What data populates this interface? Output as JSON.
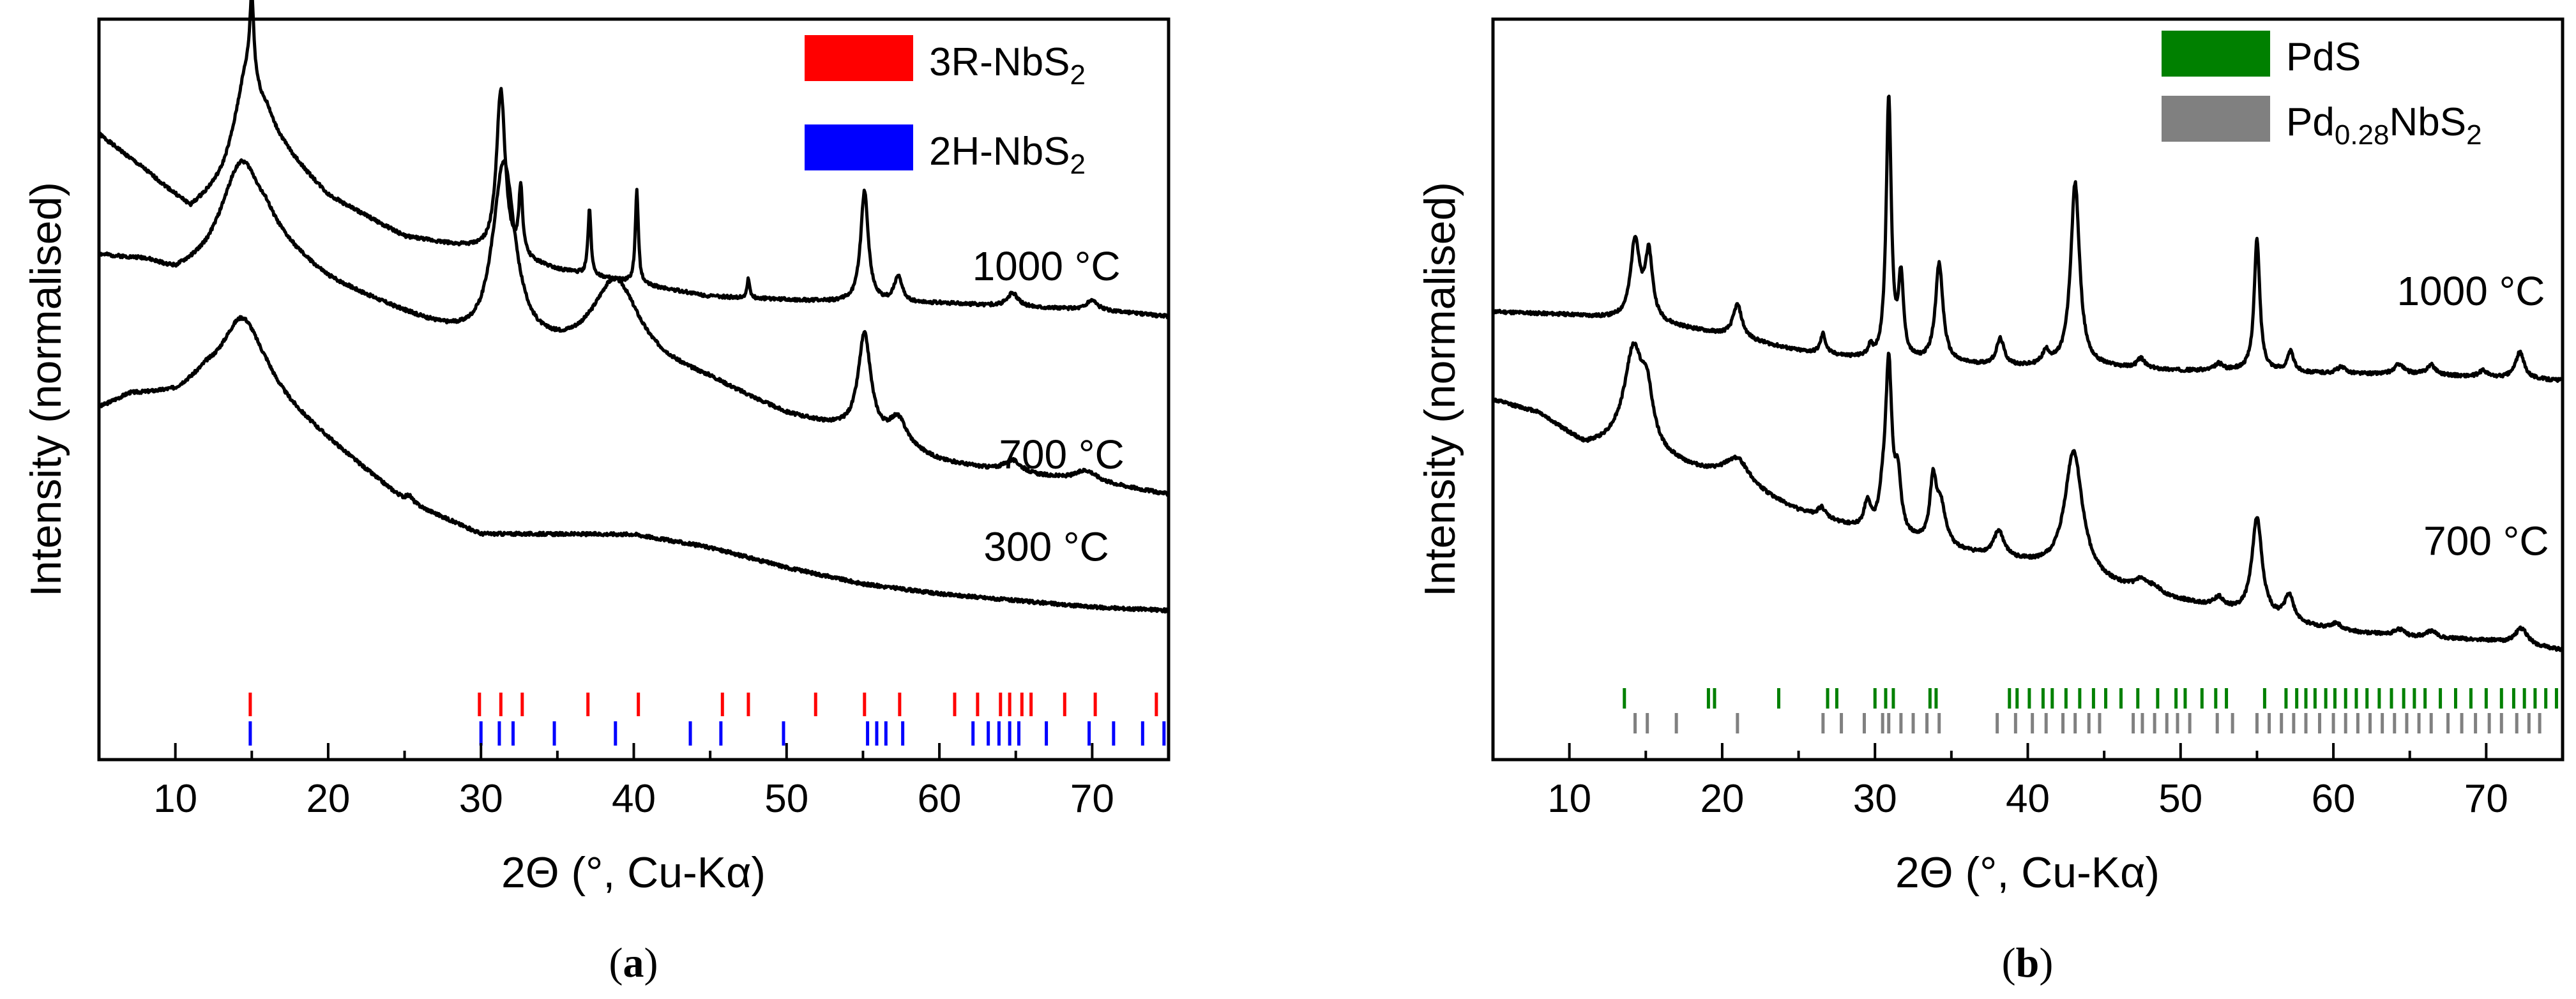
{
  "chart_data": [
    {
      "panel": "a",
      "type": "line",
      "caption_open": "(",
      "caption_letter": "a",
      "caption_close": ")",
      "title": "",
      "xlabel": "2Θ (°, Cu-Kα)",
      "ylabel": "Intensity (normalised)",
      "xlim": [
        5,
        75
      ],
      "ylim": [
        0,
        100
      ],
      "xticks": [
        10,
        20,
        30,
        40,
        50,
        60,
        70
      ],
      "yticks_shown": false,
      "legend": {
        "placement": "top-right",
        "entries": [
          {
            "name": "3R-NbS",
            "sub": "2",
            "color": "#ff0000"
          },
          {
            "name": "2H-NbS",
            "sub": "2",
            "color": "#0000ff"
          }
        ]
      },
      "series": [
        {
          "name": "1000 °C",
          "label": "1000 °C",
          "label_at": [
            67,
            60.5
          ],
          "base": [
            [
              5,
              82.5
            ],
            [
              8,
              77
            ],
            [
              11,
              71
            ],
            [
              13,
              74
            ],
            [
              16,
              82
            ],
            [
              20,
              73
            ],
            [
              25,
              67
            ],
            [
              30,
              65
            ],
            [
              35,
              62
            ],
            [
              40,
              60
            ],
            [
              45,
              58
            ],
            [
              50,
              57.5
            ],
            [
              55,
              57
            ],
            [
              60,
              57
            ],
            [
              65,
              56.5
            ],
            [
              70,
              56
            ],
            [
              75,
              55
            ]
          ],
          "peaks": [
            [
              14.7,
              14,
              1.0
            ],
            [
              15.0,
              12,
              0.15
            ],
            [
              31.3,
              25,
              0.35
            ],
            [
              32.6,
              10,
              0.15
            ],
            [
              37.1,
              10,
              0.12
            ],
            [
              40.2,
              14,
              0.12
            ],
            [
              47.5,
              3,
              0.1
            ],
            [
              55.1,
              17,
              0.3
            ],
            [
              57.3,
              4,
              0.3
            ],
            [
              64.8,
              2,
              0.4
            ],
            [
              70.0,
              1.5,
              0.4
            ]
          ]
        },
        {
          "name": "700 °C",
          "label": "700 °C",
          "label_at": [
            68,
            32
          ],
          "base": [
            [
              5,
              64
            ],
            [
              8,
              63
            ],
            [
              10,
              61
            ],
            [
              12,
              62
            ],
            [
              16,
              66
            ],
            [
              20,
              60
            ],
            [
              25,
              55
            ],
            [
              30,
              50
            ],
            [
              35,
              49
            ],
            [
              40,
              48
            ],
            [
              45,
              45
            ],
            [
              50,
              40
            ],
            [
              55,
              37
            ],
            [
              60,
              33
            ],
            [
              65,
              31
            ],
            [
              70,
              30
            ],
            [
              75,
              28
            ]
          ],
          "peaks": [
            [
              14.3,
              14,
              1.6
            ],
            [
              31.5,
              28,
              0.9
            ],
            [
              38.8,
              12,
              1.8
            ],
            [
              55.1,
              15,
              0.5
            ],
            [
              57.3,
              4,
              0.7
            ],
            [
              64.8,
              2,
              0.7
            ],
            [
              69.6,
              1.5,
              0.8
            ]
          ]
        },
        {
          "name": "300 °C",
          "label": "300 °C",
          "label_at": [
            67,
            18
          ],
          "base": [
            [
              5,
              41
            ],
            [
              7,
              43
            ],
            [
              10,
              43
            ],
            [
              12,
              45
            ],
            [
              16,
              43
            ],
            [
              20,
              36
            ],
            [
              25,
              27
            ],
            [
              30,
              22
            ],
            [
              35,
              22
            ],
            [
              40,
              22
            ],
            [
              45,
              20
            ],
            [
              50,
              17
            ],
            [
              55,
              14.5
            ],
            [
              60,
              13
            ],
            [
              65,
              12
            ],
            [
              70,
              11
            ],
            [
              75,
              10.5
            ]
          ],
          "peaks": [
            [
              14.4,
              11,
              1.6
            ],
            [
              25.3,
              1,
              0.3
            ]
          ]
        }
      ],
      "reference_ticks": [
        {
          "name": "3R-NbS2",
          "color": "#ff0000",
          "positions": [
            14.9,
            29.9,
            31.3,
            32.7,
            37.0,
            40.3,
            45.8,
            47.5,
            51.9,
            55.1,
            57.4,
            61.0,
            62.5,
            64.0,
            64.6,
            65.4,
            66.0,
            68.2,
            70.2,
            74.2
          ]
        },
        {
          "name": "2H-NbS2",
          "color": "#0000ff",
          "positions": [
            14.9,
            30.0,
            31.2,
            32.1,
            34.8,
            38.8,
            43.7,
            45.7,
            49.8,
            55.3,
            55.9,
            56.5,
            57.6,
            62.2,
            63.2,
            63.9,
            64.6,
            65.2,
            67.0,
            69.8,
            71.4,
            73.3,
            74.7
          ]
        }
      ]
    },
    {
      "panel": "b",
      "type": "line",
      "caption_open": "(",
      "caption_letter": "b",
      "caption_close": ")",
      "title": "",
      "xlabel": "2Θ (°, Cu-Kα)",
      "ylabel": "Intensity (normalised)",
      "xlim": [
        5,
        75
      ],
      "ylim": [
        0,
        100
      ],
      "xticks": [
        10,
        20,
        30,
        40,
        50,
        60,
        70
      ],
      "yticks_shown": false,
      "legend": {
        "placement": "top-right",
        "entries": [
          {
            "name": "PdS",
            "sub": "",
            "color": "#008000"
          },
          {
            "name": "Pd",
            "sub": "0.28",
            "name2": "NbS",
            "sub2": "2",
            "color": "#808080"
          }
        ]
      },
      "series": [
        {
          "name": "1000 °C",
          "label": "1000 °C",
          "label_at": [
            69,
            56.5
          ],
          "base": [
            [
              5,
              55.5
            ],
            [
              10,
              55
            ],
            [
              15,
              54
            ],
            [
              20,
              52
            ],
            [
              25,
              49.5
            ],
            [
              30,
              48
            ],
            [
              35,
              47.5
            ],
            [
              40,
              47
            ],
            [
              45,
              47
            ],
            [
              50,
              46.5
            ],
            [
              55,
              46.5
            ],
            [
              60,
              46
            ],
            [
              65,
              46
            ],
            [
              70,
              45.5
            ],
            [
              75,
              45
            ]
          ],
          "peaks": [
            [
              14.3,
              12,
              0.35
            ],
            [
              15.2,
              10,
              0.3
            ],
            [
              21.0,
              5,
              0.35
            ],
            [
              26.6,
              3,
              0.2
            ],
            [
              29.7,
              1.5,
              0.2
            ],
            [
              30.9,
              40,
              0.2
            ],
            [
              31.7,
              12,
              0.2
            ],
            [
              34.2,
              15,
              0.3
            ],
            [
              38.2,
              4,
              0.3
            ],
            [
              41.2,
              2,
              0.3
            ],
            [
              43.1,
              28,
              0.35
            ],
            [
              47.4,
              1.5,
              0.3
            ],
            [
              52.5,
              1,
              0.3
            ],
            [
              55.0,
              20,
              0.22
            ],
            [
              57.2,
              3,
              0.25
            ],
            [
              60.5,
              1,
              0.4
            ],
            [
              64.3,
              1.5,
              0.35
            ],
            [
              66.4,
              1.5,
              0.35
            ],
            [
              69.8,
              1,
              0.3
            ],
            [
              72.2,
              4,
              0.35
            ]
          ]
        },
        {
          "name": "700 °C",
          "label": "700 °C",
          "label_at": [
            70,
            18.5
          ],
          "base": [
            [
              5,
              42
            ],
            [
              8,
              40
            ],
            [
              11,
              35
            ],
            [
              13,
              35
            ],
            [
              20,
              30
            ],
            [
              25,
              25
            ],
            [
              30,
              21.5
            ],
            [
              35,
              19
            ],
            [
              40,
              17
            ],
            [
              45,
              14
            ],
            [
              50,
              11.5
            ],
            [
              55,
              9
            ],
            [
              60,
              7
            ],
            [
              65,
              6
            ],
            [
              70,
              5.5
            ],
            [
              75,
              4
            ]
          ],
          "peaks": [
            [
              14.2,
              15,
              0.75
            ],
            [
              15.1,
              7,
              0.45
            ],
            [
              21.0,
              4,
              1.0
            ],
            [
              26.5,
              1.5,
              0.3
            ],
            [
              29.5,
              4,
              0.25
            ],
            [
              30.5,
              4,
              0.3
            ],
            [
              30.9,
              25,
              0.25
            ],
            [
              31.5,
              8,
              0.25
            ],
            [
              33.8,
              9,
              0.25
            ],
            [
              34.3,
              6,
              0.4
            ],
            [
              38.1,
              4,
              0.4
            ],
            [
              43.0,
              19,
              0.7
            ],
            [
              47.4,
              1.5,
              0.5
            ],
            [
              48.3,
              1,
              0.4
            ],
            [
              52.5,
              1.5,
              0.4
            ],
            [
              55.0,
              15,
              0.4
            ],
            [
              57.1,
              4,
              0.35
            ],
            [
              60.2,
              1,
              0.4
            ],
            [
              64.3,
              1,
              0.4
            ],
            [
              66.4,
              1,
              0.4
            ],
            [
              72.3,
              2.5,
              0.5
            ]
          ]
        }
      ],
      "reference_ticks": [
        {
          "name": "PdS",
          "color": "#008000",
          "positions": [
            13.6,
            19.1,
            19.5,
            23.7,
            26.9,
            27.5,
            30.0,
            30.7,
            31.2,
            33.6,
            34.0,
            38.8,
            39.3,
            40.1,
            41.0,
            41.6,
            42.5,
            43.4,
            44.3,
            45.1,
            46.1,
            47.2,
            48.5,
            49.7,
            50.3,
            51.4,
            52.3,
            53.0,
            55.5,
            56.9,
            57.6,
            58.2,
            58.8,
            59.5,
            60.1,
            60.8,
            61.5,
            62.2,
            63.0,
            63.8,
            64.6,
            65.3,
            66.0,
            67.0,
            68.0,
            69.0,
            70.0,
            71.0,
            71.8,
            72.5,
            73.2,
            73.9,
            74.6
          ]
        },
        {
          "name": "Pd0.28NbS2",
          "color": "#808080",
          "positions": [
            14.3,
            15.1,
            17.0,
            21.0,
            26.6,
            27.8,
            29.3,
            30.5,
            30.9,
            31.7,
            32.5,
            33.4,
            34.2,
            38.0,
            39.2,
            40.3,
            41.2,
            42.3,
            43.1,
            44.0,
            44.7,
            46.9,
            47.5,
            48.3,
            49.1,
            49.8,
            50.6,
            52.4,
            53.4,
            55.0,
            55.8,
            56.6,
            57.4,
            58.2,
            59.1,
            60.0,
            60.8,
            61.6,
            62.4,
            63.2,
            64.0,
            64.8,
            65.6,
            66.4,
            67.5,
            68.4,
            69.3,
            70.2,
            71.0,
            72.0,
            72.8,
            73.5
          ]
        }
      ]
    }
  ]
}
